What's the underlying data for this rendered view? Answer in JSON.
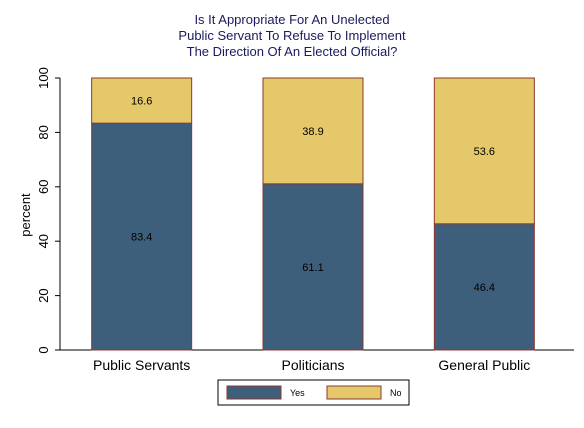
{
  "chart_data": {
    "type": "bar",
    "stacked": true,
    "title_lines": [
      "Is It Appropriate For An Unelected",
      "Public Servant To Refuse To Implement",
      "The Direction Of An Elected Official?"
    ],
    "ylabel": "percent",
    "xlabel": "",
    "ylim": [
      0,
      100
    ],
    "yticks": [
      0,
      20,
      40,
      60,
      80,
      100
    ],
    "categories": [
      "Public Servants",
      "Politicians",
      "General Public"
    ],
    "series": [
      {
        "name": "Yes",
        "values": [
          83.4,
          61.1,
          46.4
        ],
        "labels": [
          "83.4",
          "61.1",
          "46.4"
        ],
        "color": "#3d5f7c"
      },
      {
        "name": "No",
        "values": [
          16.6,
          38.9,
          53.6
        ],
        "labels": [
          "16.6",
          "38.9",
          "53.6"
        ],
        "color": "#e4c86a"
      }
    ],
    "bar_outline_color": "#8b3a2f",
    "legend_position": "bottom",
    "grid": false
  }
}
